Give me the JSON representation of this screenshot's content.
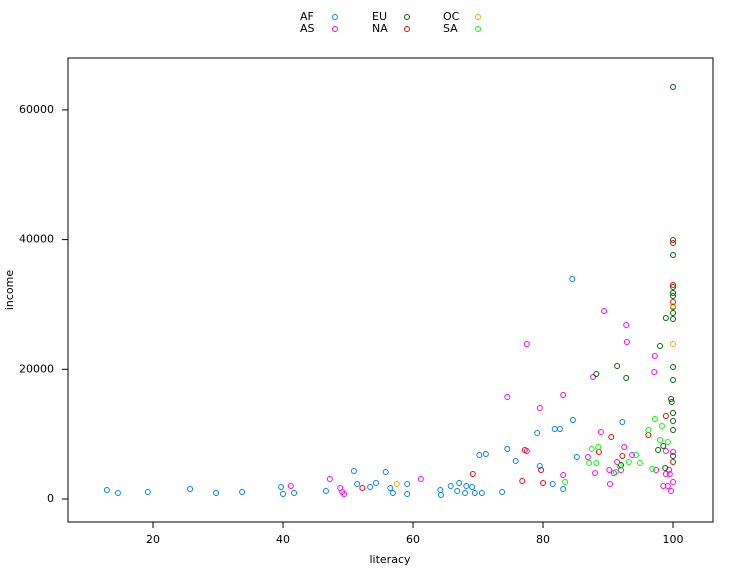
{
  "chart_data": {
    "type": "scatter",
    "xlabel": "literacy",
    "ylabel": "income",
    "xlim": [
      6.92,
      106.15
    ],
    "ylim": [
      -3547,
      68003
    ],
    "xticks": [
      20,
      40,
      60,
      80,
      100
    ],
    "yticks": [
      0,
      20000,
      40000,
      60000
    ],
    "legend": "top",
    "series": [
      {
        "name": "AF",
        "color": "#0080ff",
        "x": [
          12.9,
          14.6,
          19.2,
          25.7,
          29.7,
          33.7,
          39.7,
          40,
          41.7,
          46.6,
          50.9,
          51.4,
          53.4,
          54.3,
          55.8,
          56.5,
          56.9,
          59.1,
          59.1,
          64.2,
          64.3,
          65.8,
          66.8,
          67.1,
          68,
          68.2,
          69.1,
          69.5,
          70.2,
          70.6,
          71.2,
          73.7,
          74.5,
          75.8,
          79.1,
          79.5,
          81.5,
          81.8,
          82.6,
          83.1,
          84.5,
          84.6,
          85.2,
          92.2
        ],
        "values": [
          1388,
          925,
          1080,
          1540,
          925,
          1080,
          1850,
          770,
          925,
          1230,
          4320,
          2310,
          1850,
          2470,
          4160,
          1700,
          925,
          2310,
          770,
          1390,
          620,
          2000,
          1230,
          2470,
          925,
          2000,
          1850,
          925,
          6780,
          925,
          6940,
          1080,
          7710,
          5860,
          10180,
          5090,
          2310,
          10790,
          10790,
          1540,
          33920,
          12180,
          6480,
          11870
        ]
      },
      {
        "name": "AS",
        "color": "#ff00ff",
        "x": [
          47.2,
          48.8,
          49.1,
          49.4,
          41.2,
          61.2,
          74.5,
          77.5,
          77.5,
          79.5,
          83.1,
          83.1,
          86.9,
          87.7,
          88,
          88.9,
          89.4,
          90.2,
          90.3,
          90.9,
          91.4,
          92,
          92.8,
          92.9,
          92.5,
          93.7,
          97.4,
          97.2,
          97.1,
          98.5,
          99.2,
          98.9,
          99.4,
          99.5,
          99.7,
          100,
          100,
          98.9
        ],
        "values": [
          3080,
          1700,
          1080,
          770,
          2000,
          3080,
          15730,
          7400,
          23900,
          14030,
          16040,
          3700,
          6480,
          18810,
          4010,
          10330,
          28990,
          4470,
          2310,
          4010,
          5710,
          4470,
          26830,
          24210,
          8020,
          6790,
          4470,
          22050,
          19580,
          2000,
          2000,
          3860,
          4470,
          3860,
          1230,
          7250,
          2620,
          7400
        ]
      },
      {
        "name": "EU",
        "color": "#006400",
        "x": [
          88.2,
          92.8,
          91.4,
          98,
          98.9,
          99.7,
          99.8,
          100,
          100,
          100,
          100,
          100,
          100,
          100,
          100,
          100,
          100,
          100,
          100,
          100,
          100,
          100,
          98.8,
          98.5,
          97.7,
          92
        ],
        "values": [
          19270,
          18660,
          20510,
          23590,
          27910,
          15420,
          14960,
          10640,
          6630,
          20350,
          18350,
          13260,
          12030,
          39940,
          37620,
          31770,
          31300,
          29610,
          28680,
          27760,
          63530,
          32690,
          4780,
          8170,
          7560,
          5240
        ]
      },
      {
        "name": "NA",
        "color": "#ff0000",
        "x": [
          52.2,
          69.2,
          76.8,
          77.2,
          80,
          79.7,
          88.6,
          90.5,
          92.2,
          96.2,
          98.9,
          100,
          100,
          100,
          100
        ],
        "values": [
          1700,
          3860,
          2780,
          7560,
          2470,
          4470,
          7250,
          9560,
          6630,
          9870,
          12800,
          39480,
          33000,
          30380,
          5710
        ]
      },
      {
        "name": "OC",
        "color": "#ffa500",
        "x": [
          57.5,
          100,
          100
        ],
        "values": [
          2310,
          23900,
          29760
        ]
      },
      {
        "name": "SA",
        "color": "#00ff00",
        "x": [
          83.4,
          87.1,
          87.5,
          88.2,
          88.5,
          91.2,
          91.8,
          93.2,
          94.3,
          94.9,
          96.2,
          96.8,
          97.2,
          98,
          98.3,
          99.2
        ],
        "values": [
          2620,
          5550,
          7710,
          5550,
          8020,
          4160,
          5090,
          5710,
          6790,
          5550,
          10640,
          4630,
          12340,
          9100,
          11260,
          8790
        ]
      }
    ]
  }
}
